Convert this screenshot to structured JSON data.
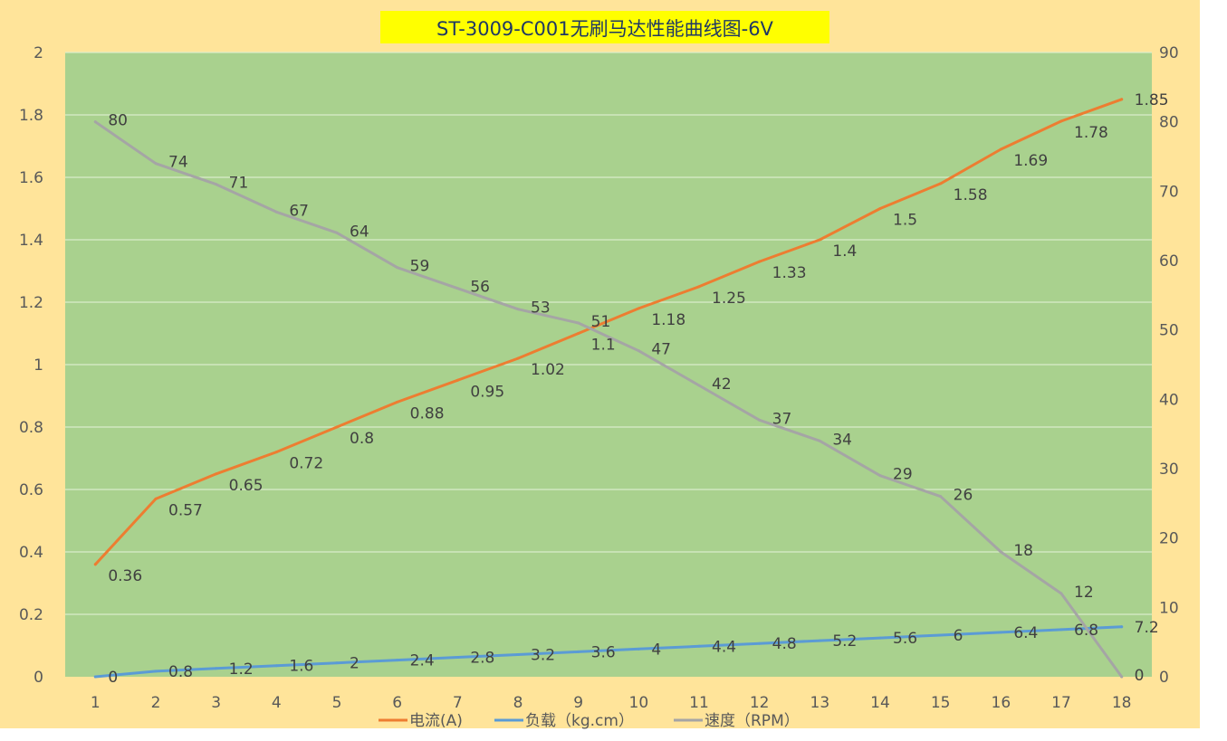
{
  "colors": {
    "outer_background": "#ffe49a",
    "plot_background": "#a9d18e",
    "gridline": "#d9eccb",
    "title_background": "#ffff00",
    "title_text": "#1f3864",
    "current": "#ed7d31",
    "load": "#5b9bd5",
    "speed": "#a5a5a5",
    "axis_text": "#595959",
    "label_text": "#404040"
  },
  "chart_data": {
    "type": "line",
    "title": "ST-3009-C001无刷马达性能曲线图-6V",
    "x": [
      1,
      2,
      3,
      4,
      5,
      6,
      7,
      8,
      9,
      10,
      11,
      12,
      13,
      14,
      15,
      16,
      17,
      18
    ],
    "x_tick_labels": [
      "1",
      "2",
      "3",
      "4",
      "5",
      "6",
      "7",
      "8",
      "9",
      "10",
      "11",
      "12",
      "13",
      "14",
      "15",
      "16",
      "17",
      "18"
    ],
    "y_left": {
      "min": 0,
      "max": 2,
      "step": 0.2,
      "tick_labels": [
        "0",
        "0.2",
        "0.4",
        "0.6",
        "0.8",
        "1",
        "1.2",
        "1.4",
        "1.6",
        "1.8",
        "2"
      ]
    },
    "y_right": {
      "min": 0,
      "max": 90,
      "step": 10,
      "tick_labels": [
        "0",
        "10",
        "20",
        "30",
        "40",
        "50",
        "60",
        "70",
        "80",
        "90"
      ]
    },
    "grid": true,
    "legend_position": "bottom",
    "series": [
      {
        "name": "电流(A)",
        "axis": "left",
        "color": "#ed7d31",
        "values": [
          0.36,
          0.57,
          0.65,
          0.72,
          0.8,
          0.88,
          0.95,
          1.02,
          1.1,
          1.18,
          1.25,
          1.33,
          1.4,
          1.5,
          1.58,
          1.69,
          1.78,
          1.85
        ],
        "labels": [
          "0.36",
          "0.57",
          "0.65",
          "0.72",
          "0.8",
          "0.88",
          "0.95",
          "1.02",
          "1.1",
          "1.18",
          "1.25",
          "1.33",
          "1.4",
          "1.5",
          "1.58",
          "1.69",
          "1.78",
          "1.85"
        ]
      },
      {
        "name": "负载（kg.cm）",
        "axis": "right",
        "color": "#5b9bd5",
        "values": [
          0,
          0.8,
          1.2,
          1.6,
          2,
          2.4,
          2.8,
          3.2,
          3.6,
          4,
          4.4,
          4.8,
          5.2,
          5.6,
          6,
          6.4,
          6.8,
          7.2
        ],
        "labels": [
          "0",
          "0.8",
          "1.2",
          "1.6",
          "2",
          "2.4",
          "2.8",
          "3.2",
          "3.6",
          "4",
          "4.4",
          "4.8",
          "5.2",
          "5.6",
          "6",
          "6.4",
          "6.8",
          "7.2"
        ]
      },
      {
        "name": "速度（RPM）",
        "axis": "right",
        "color": "#a5a5a5",
        "values": [
          80,
          74,
          71,
          67,
          64,
          59,
          56,
          53,
          51,
          47,
          42,
          37,
          34,
          29,
          26,
          18,
          12,
          0
        ],
        "labels": [
          "80",
          "74",
          "71",
          "67",
          "64",
          "59",
          "56",
          "53",
          "51",
          "47",
          "42",
          "37",
          "34",
          "29",
          "26",
          "18",
          "12",
          "0"
        ]
      }
    ]
  }
}
